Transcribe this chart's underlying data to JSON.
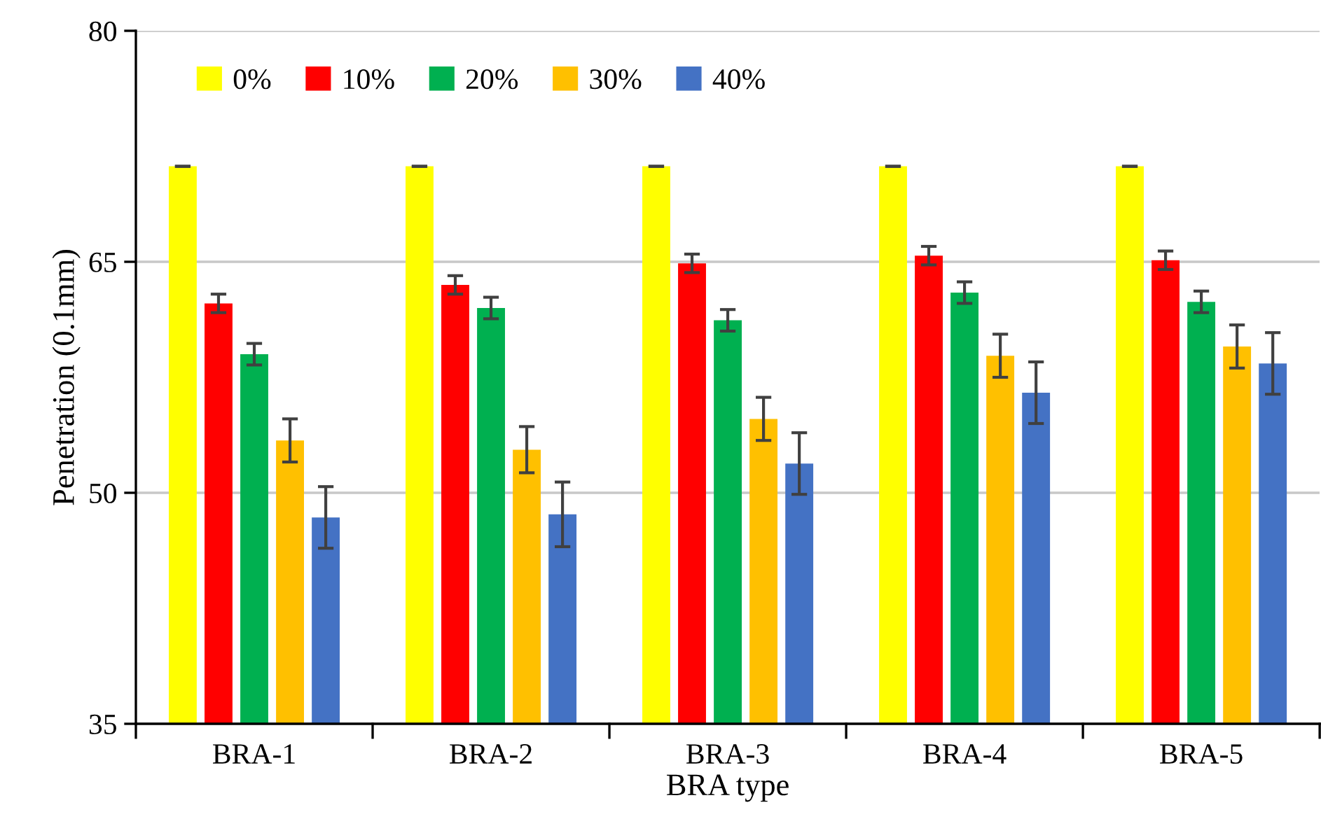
{
  "chart_data": {
    "type": "bar",
    "xlabel": "BRA type",
    "ylabel": "Penetration (0.1mm)",
    "categories": [
      "BRA-1",
      "BRA-2",
      "BRA-3",
      "BRA-4",
      "BRA-5"
    ],
    "series": [
      {
        "name": "0%",
        "color": "#ffff00",
        "values": [
          71.2,
          71.2,
          71.2,
          71.2,
          71.2
        ],
        "errors": [
          0,
          0,
          0,
          0,
          0
        ]
      },
      {
        "name": "10%",
        "color": "#ff0000",
        "values": [
          62.3,
          63.5,
          64.9,
          65.4,
          65.1
        ],
        "errors": [
          0.6,
          0.6,
          0.6,
          0.6,
          0.6
        ]
      },
      {
        "name": "20%",
        "color": "#00b050",
        "values": [
          59.0,
          62.0,
          61.2,
          63.0,
          62.4
        ],
        "errors": [
          0.7,
          0.7,
          0.7,
          0.7,
          0.7
        ]
      },
      {
        "name": "30%",
        "color": "#ffc000",
        "values": [
          53.4,
          52.8,
          54.8,
          58.9,
          59.5
        ],
        "errors": [
          1.4,
          1.5,
          1.4,
          1.4,
          1.4
        ]
      },
      {
        "name": "40%",
        "color": "#4472c4",
        "values": [
          48.4,
          48.6,
          51.9,
          56.5,
          58.4
        ],
        "errors": [
          2.0,
          2.1,
          2.0,
          2.0,
          2.0
        ]
      }
    ],
    "ylim": [
      35,
      80
    ],
    "yticks": [
      35,
      50,
      65,
      80
    ],
    "grid": "y",
    "legend": "top left"
  }
}
